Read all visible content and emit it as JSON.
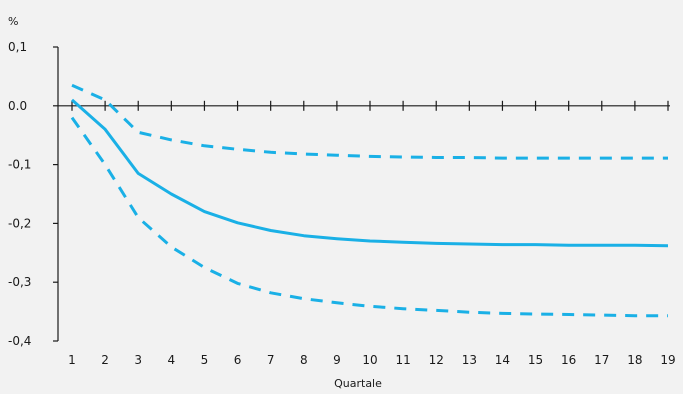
{
  "chart_data": {
    "type": "line",
    "title": "",
    "ylabel": "%",
    "xlabel": "Quartale",
    "x": [
      1,
      2,
      3,
      4,
      5,
      6,
      7,
      8,
      9,
      10,
      11,
      12,
      13,
      14,
      15,
      16,
      17,
      18,
      19
    ],
    "ylim": [
      -0.4,
      0.1
    ],
    "yticks": [
      0.1,
      0.0,
      -0.1,
      -0.2,
      -0.3,
      -0.4
    ],
    "ytick_labels": [
      "0,1",
      "0.0",
      "-0,1",
      "-0,2",
      "-0,3",
      "-0,4"
    ],
    "xtick_labels": [
      "1",
      "2",
      "3",
      "4",
      "5",
      "6",
      "7",
      "8",
      "9",
      "10",
      "11",
      "12",
      "13",
      "14",
      "15",
      "16",
      "17",
      "18",
      "19"
    ],
    "grid": false,
    "series": [
      {
        "style": "solid",
        "color": "#1ab0e6",
        "values": [
          0.01,
          -0.04,
          -0.115,
          -0.15,
          -0.18,
          -0.199,
          -0.212,
          -0.221,
          -0.226,
          -0.23,
          -0.232,
          -0.234,
          -0.235,
          -0.236,
          -0.236,
          -0.237,
          -0.237,
          -0.237,
          -0.238
        ]
      },
      {
        "style": "dashed",
        "color": "#1ab0e6",
        "values": [
          0.035,
          0.01,
          -0.045,
          -0.058,
          -0.068,
          -0.074,
          -0.079,
          -0.082,
          -0.084,
          -0.086,
          -0.087,
          -0.088,
          -0.088,
          -0.089,
          -0.089,
          -0.089,
          -0.089,
          -0.089,
          -0.089
        ]
      },
      {
        "style": "dashed",
        "color": "#1ab0e6",
        "values": [
          -0.02,
          -0.1,
          -0.19,
          -0.24,
          -0.275,
          -0.302,
          -0.318,
          -0.328,
          -0.335,
          -0.341,
          -0.345,
          -0.348,
          -0.351,
          -0.353,
          -0.354,
          -0.355,
          -0.356,
          -0.357,
          -0.357
        ]
      }
    ]
  }
}
